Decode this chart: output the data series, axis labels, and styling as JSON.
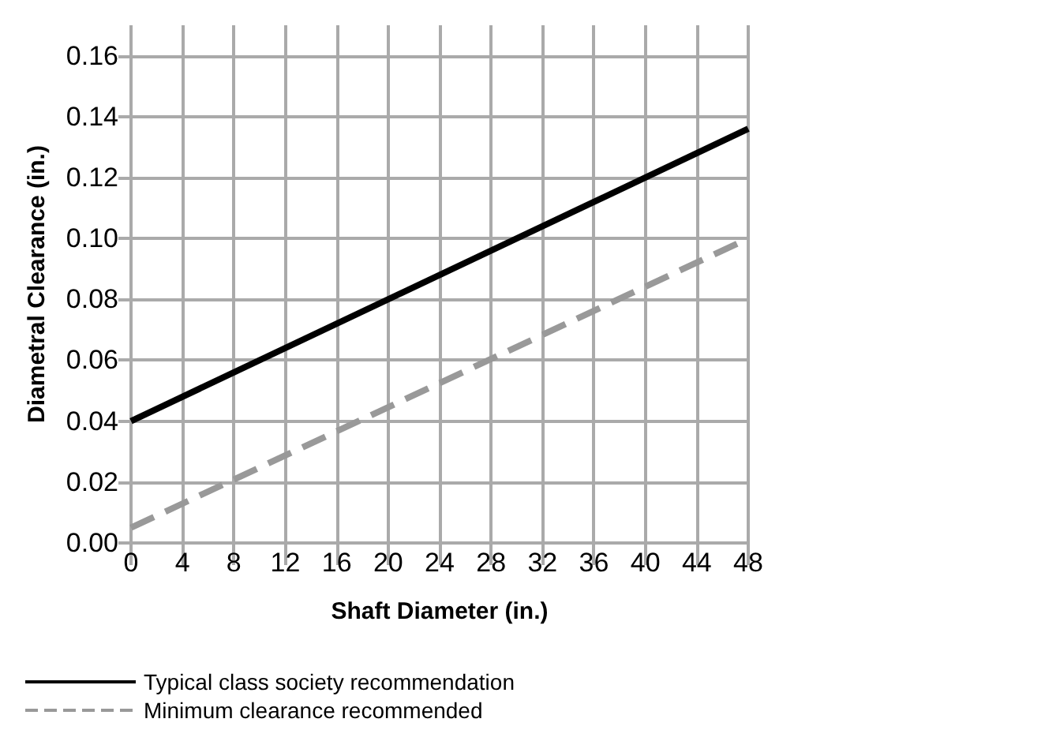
{
  "chart_data": {
    "type": "line",
    "xlabel": "Shaft Diameter (in.)",
    "ylabel": "Diametral Clearance (in.)",
    "x": [
      0,
      48
    ],
    "series": [
      {
        "name": "Typical class society recommendation",
        "color": "#000000",
        "values": [
          0.04,
          0.136
        ],
        "line_style": "solid"
      },
      {
        "name": "Minimum clearance recommended",
        "color": "#999999",
        "values": [
          0.005,
          0.1
        ],
        "line_style": "dashed"
      }
    ],
    "xlim": [
      0,
      48
    ],
    "xticks": [
      0,
      4,
      8,
      12,
      16,
      20,
      24,
      28,
      32,
      36,
      40,
      44,
      48
    ],
    "ylim": [
      0,
      0.17
    ],
    "yticks": [
      {
        "value": 0,
        "label": "0.00"
      },
      {
        "value": 0.02,
        "label": "0.02"
      },
      {
        "value": 0.04,
        "label": "0.04"
      },
      {
        "value": 0.06,
        "label": "0.06"
      },
      {
        "value": 0.08,
        "label": "0.08"
      },
      {
        "value": 0.1,
        "label": "0.10"
      },
      {
        "value": 0.12,
        "label": "0.12"
      },
      {
        "value": 0.14,
        "label": "0.14"
      },
      {
        "value": 0.16,
        "label": "0.16"
      }
    ],
    "grid": true,
    "legend": "bottom left",
    "marker": "none"
  }
}
